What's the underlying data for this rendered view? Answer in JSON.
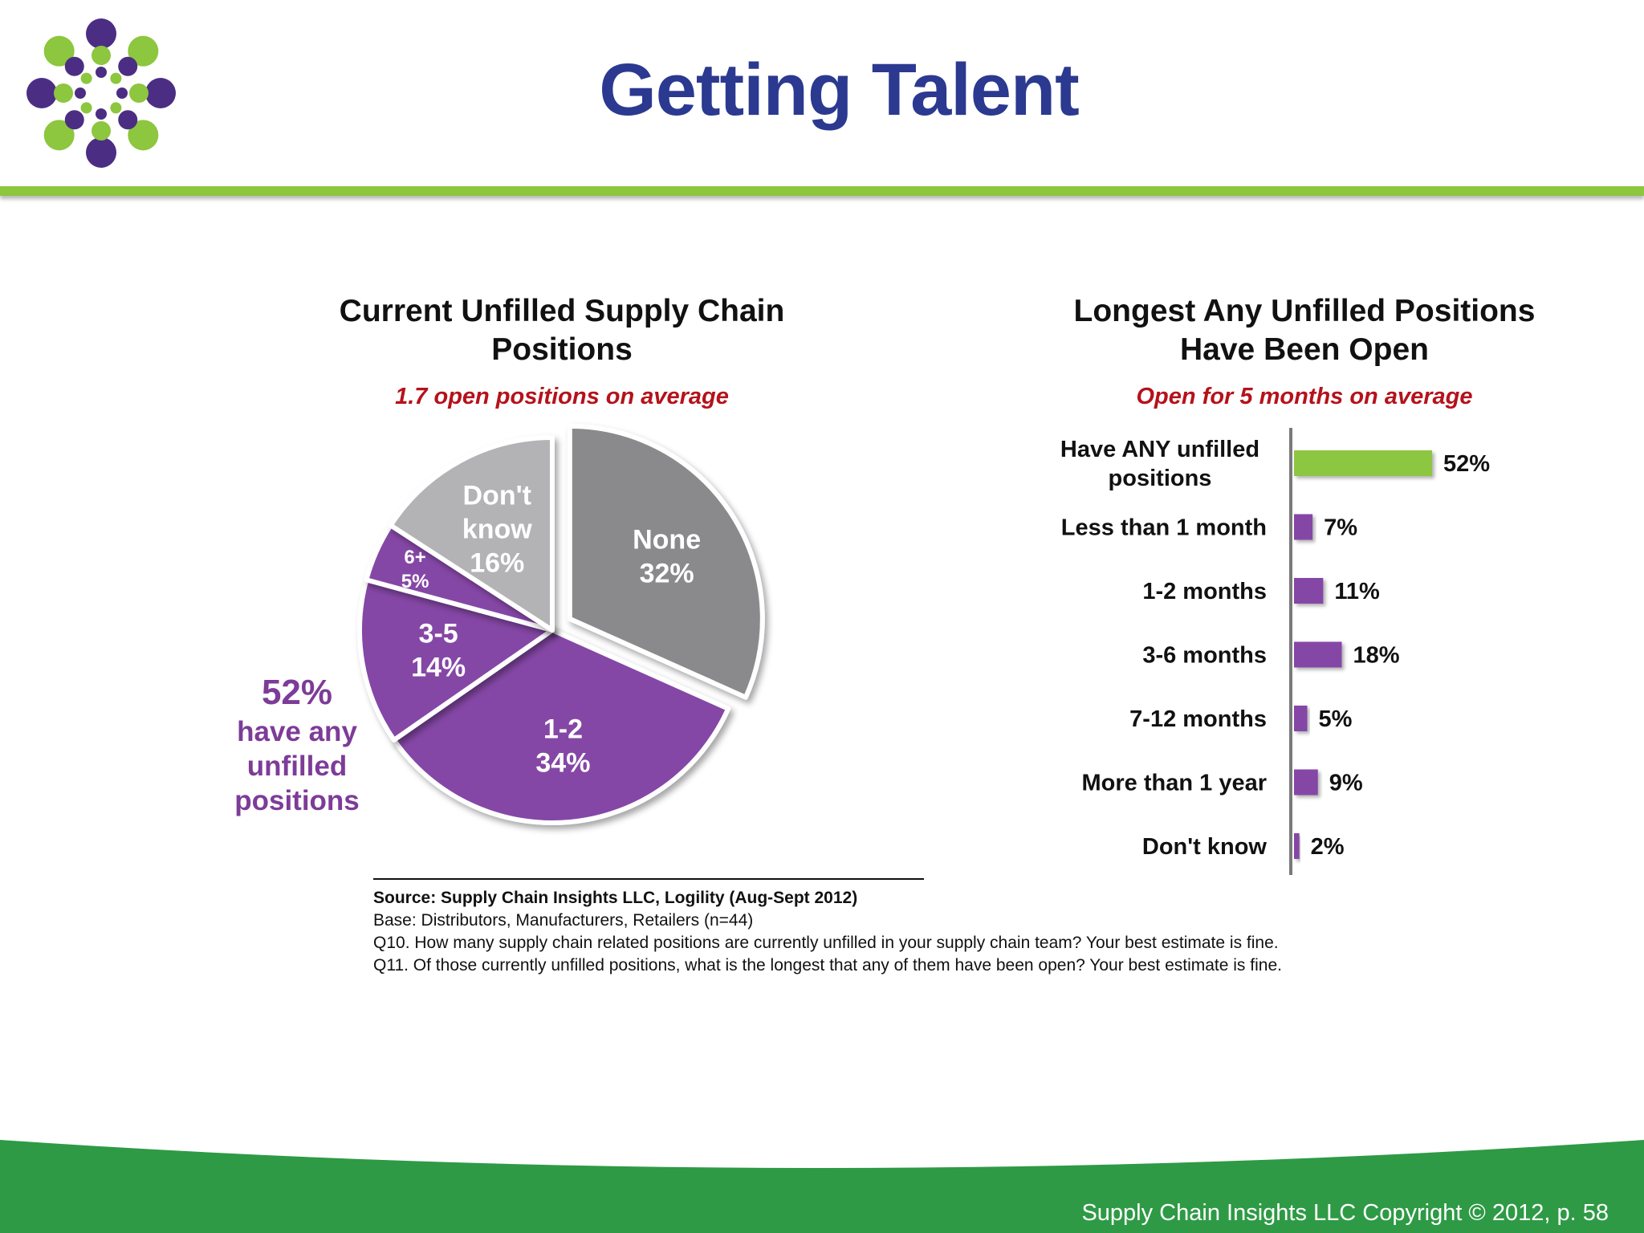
{
  "slide": {
    "title": "Getting Talent",
    "footer": "Supply Chain Insights LLC Copyright © 2012, p. 58",
    "logo_icon": "dot-burst-logo-icon",
    "colors": {
      "title": "#2b3990",
      "accent_green": "#8dc63f",
      "footer_green": "#2e9a45",
      "purple": "#8546a6",
      "gray": "#8a8a8c",
      "light_gray": "#b3b3b5",
      "subtitle_red": "#b5121b"
    }
  },
  "chart_data": [
    {
      "type": "pie",
      "title_lines": [
        "Current Unfilled Supply Chain",
        "Positions"
      ],
      "subtitle": "1.7 open positions on average",
      "slices": [
        {
          "label": "None",
          "value": 32,
          "value_label": "32%",
          "color": "#8a8a8c",
          "exploded": true
        },
        {
          "label": "1-2",
          "value": 34,
          "value_label": "34%",
          "color": "#8546a6"
        },
        {
          "label": "3-5",
          "value": 14,
          "value_label": "14%",
          "color": "#8546a6"
        },
        {
          "label": "6+",
          "value": 5,
          "value_label": "5%",
          "color": "#8546a6"
        },
        {
          "label": "Don't know",
          "label_lines": [
            "Don't",
            "know"
          ],
          "value": 16,
          "value_label": "16%",
          "color": "#b3b3b5"
        }
      ],
      "annotation": {
        "value": "52%",
        "lines": [
          "have any",
          "unfilled",
          "positions"
        ]
      }
    },
    {
      "type": "bar",
      "orientation": "horizontal",
      "title_lines": [
        "Longest Any Unfilled Positions",
        "Have Been Open"
      ],
      "subtitle": "Open for 5 months on average",
      "categories": [
        [
          "Have ANY unfilled",
          "positions"
        ],
        [
          "Less than 1 month"
        ],
        [
          "1-2 months"
        ],
        [
          "3-6 months"
        ],
        [
          "7-12 months"
        ],
        [
          "More than 1 year"
        ],
        [
          "Don't know"
        ]
      ],
      "values": [
        52,
        7,
        11,
        18,
        5,
        9,
        2
      ],
      "value_labels": [
        "52%",
        "7%",
        "11%",
        "18%",
        "5%",
        "9%",
        "2%"
      ],
      "colors": [
        "#8dc63f",
        "#8546a6",
        "#8546a6",
        "#8546a6",
        "#8546a6",
        "#8546a6",
        "#8546a6"
      ],
      "xlim": [
        0,
        52
      ]
    }
  ],
  "footnotes": {
    "source": "Source:  Supply Chain Insights LLC, Logility (Aug-Sept 2012)",
    "base": "Base:  Distributors, Manufacturers, Retailers (n=44)",
    "q10": "Q10. How many supply chain related positions are currently unfilled in your supply chain team? Your best estimate is fine.",
    "q11": "Q11. Of those currently unfilled positions, what is the longest that any of them have been open?  Your best estimate is fine."
  }
}
